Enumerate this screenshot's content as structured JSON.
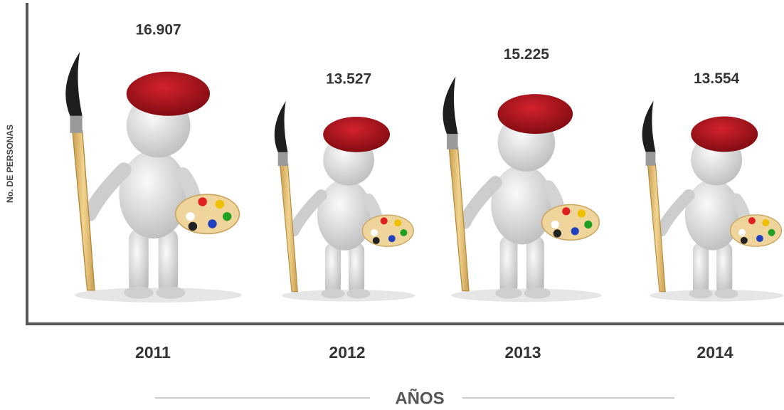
{
  "chart_data": {
    "type": "pictograph",
    "y_label": "No. DE PERSONAS",
    "x_label": "AÑOS",
    "categories": [
      "2011",
      "2012",
      "2013",
      "2014"
    ],
    "values": [
      16907,
      13527,
      15225,
      13554
    ],
    "value_labels": [
      "16.907",
      "13.527",
      "15.225",
      "13.554"
    ]
  }
}
